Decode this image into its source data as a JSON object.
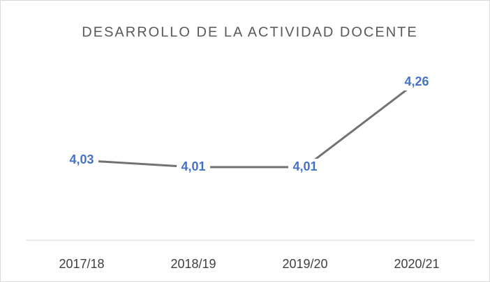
{
  "chart_data": {
    "type": "line",
    "title": "DESARROLLO DE LA ACTIVIDAD DOCENTE",
    "categories": [
      "2017/18",
      "2018/19",
      "2019/20",
      "2020/21"
    ],
    "series": [
      {
        "color": "#767171",
        "values": [
          4.03,
          4.01,
          4.01,
          4.26
        ],
        "value_labels": [
          "4,03",
          "4,01",
          "4,01",
          "4,26"
        ]
      }
    ],
    "label_color": "#4472c4"
  }
}
